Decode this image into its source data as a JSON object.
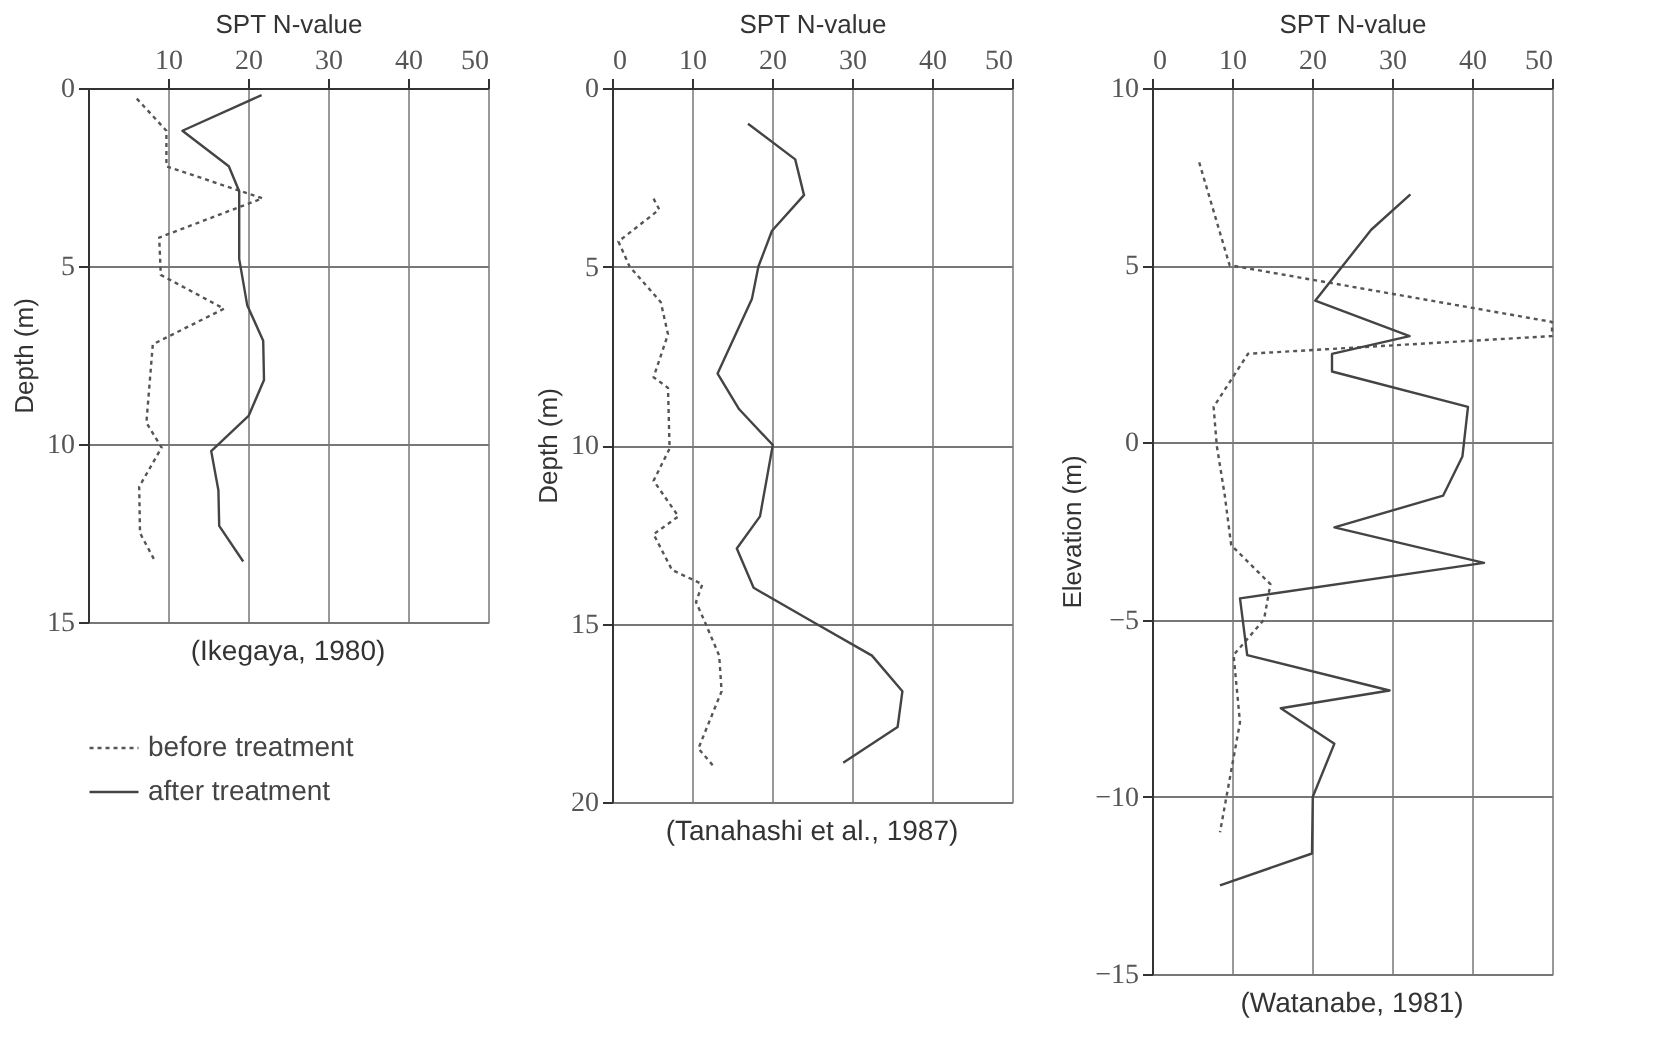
{
  "chart_data": [
    {
      "type": "line",
      "xlabel": "SPT N-value",
      "ylabel": "Depth (m)",
      "xlim": [
        0,
        50
      ],
      "xticks": [
        10,
        20,
        30,
        40,
        50
      ],
      "ylim": [
        15,
        0
      ],
      "yticks": [
        0,
        5,
        10,
        15
      ],
      "grid": true,
      "legend": "bottom",
      "annotations": [
        "(Ikegaya, 1980)"
      ],
      "series": [
        {
          "name": "before treatment",
          "color": "#555555",
          "line_style": "dotted",
          "x": [
            6.1,
            9.8,
            9.8,
            21.8,
            8.9,
            9.1,
            17,
            8.1,
            7.3,
            9.2,
            6.4,
            6.5,
            8.4
          ],
          "values": [
            0.3,
            1.2,
            2.2,
            3.1,
            4.2,
            5.25,
            6.2,
            7.2,
            9.4,
            10.1,
            11.2,
            12.5,
            13.3
          ]
        },
        {
          "name": "after treatment",
          "color": "#444444",
          "line_style": "solid",
          "x": [
            21.7,
            11.8,
            17.6,
            18.9,
            18.9,
            19.9,
            21.9,
            22,
            20.1,
            15.4,
            16.3,
            16.4,
            19.4
          ],
          "values": [
            0.2,
            1.2,
            2.2,
            2.9,
            4.8,
            6.1,
            7.1,
            8.2,
            9.2,
            10.2,
            11.3,
            12.3,
            13.3
          ]
        }
      ]
    },
    {
      "type": "line",
      "xlabel": "SPT N-value",
      "ylabel": "Depth (m)",
      "xlim": [
        0,
        50
      ],
      "xticks": [
        0,
        10,
        20,
        30,
        40,
        50
      ],
      "ylim": [
        20,
        0
      ],
      "yticks": [
        0,
        5,
        10,
        15,
        20
      ],
      "grid": true,
      "annotations": [
        "(Tanahashi et al., 1987)"
      ],
      "series": [
        {
          "color": "#555555",
          "line_style": "dotted",
          "x": [
            5.2,
            5.9,
            4.8,
            0.8,
            2.2,
            6.1,
            7.0,
            5.2,
            7.0,
            7.2,
            5.2,
            8.3,
            5.2,
            7.5,
            11.3,
            10.5,
            11.5,
            13.4,
            13.7,
            10.8,
            12.7
          ],
          "values": [
            3.1,
            3.4,
            3.6,
            4.3,
            5.0,
            6.0,
            6.9,
            8.1,
            8.4,
            10.1,
            11.0,
            12.0,
            12.5,
            13.5,
            13.9,
            14.4,
            14.9,
            15.9,
            16.9,
            18.5,
            19.0
          ]
        },
        {
          "color": "#444444",
          "line_style": "solid",
          "x": [
            17,
            22.9,
            24,
            20,
            18.3,
            17.5,
            13.2,
            15.9,
            20.1,
            18.5,
            15.6,
            17.7,
            24.7,
            32.5,
            36.3,
            35.7,
            28.9
          ],
          "values": [
            1.0,
            2.0,
            3.0,
            4.0,
            5.0,
            5.9,
            8.0,
            9.0,
            10.0,
            12.0,
            12.9,
            14.0,
            14.9,
            15.9,
            16.9,
            17.9,
            18.9
          ]
        }
      ]
    },
    {
      "type": "line",
      "xlabel": "SPT N-value",
      "ylabel": "Elevation (m)",
      "xlim": [
        0,
        50
      ],
      "xticks": [
        0,
        10,
        20,
        30,
        40,
        50
      ],
      "ylim": [
        -15,
        10
      ],
      "yticks": [
        -15,
        -10,
        -5,
        0,
        5,
        10
      ],
      "grid": true,
      "annotations": [
        "(Watanabe, 1981)"
      ],
      "series": [
        {
          "color": "#555555",
          "line_style": "dotted",
          "x": [
            5.9,
            9.7,
            50,
            50,
            12.0,
            7.7,
            8.1,
            9.1,
            9.9,
            14.8,
            14.0,
            10.2,
            11.0,
            8.5
          ],
          "values": [
            7.9,
            5.0,
            3.4,
            3.0,
            2.5,
            1.0,
            -0.1,
            -1.5,
            -2.9,
            -4.0,
            -5.0,
            -6.0,
            -7.9,
            -11.0
          ]
        },
        {
          "color": "#444444",
          "line_style": "solid",
          "x": [
            32.3,
            27.4,
            20.4,
            32.2,
            22.5,
            22.5,
            39.5,
            38.8,
            36.4,
            22.8,
            41.5,
            11.0,
            11.9,
            29.7,
            16.1,
            22.8,
            20.1,
            20.0,
            8.5
          ],
          "values": [
            7.0,
            6.0,
            4.0,
            3.0,
            2.5,
            2.0,
            1.0,
            -0.4,
            -1.5,
            -2.4,
            -3.4,
            -4.4,
            -6.0,
            -7.0,
            -7.5,
            -8.5,
            -10.0,
            -11.6,
            -12.5
          ]
        }
      ]
    }
  ]
}
